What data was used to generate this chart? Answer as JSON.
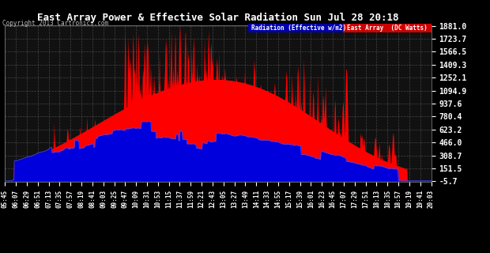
{
  "title": "East Array Power & Effective Solar Radiation Sun Jul 28 20:18",
  "copyright": "Copyright 2013 Cartronics.com",
  "legend_label_radiation": "Radiation (Effective w/m2)",
  "legend_label_east": "East Array  (DC Watts)",
  "yticks": [
    -5.7,
    151.5,
    308.7,
    466.0,
    623.2,
    780.4,
    937.6,
    1094.9,
    1252.1,
    1409.3,
    1566.5,
    1723.7,
    1881.0
  ],
  "ymin": -5.7,
  "ymax": 1881.0,
  "background_color": "#000000",
  "plot_bg_color": "#111111",
  "grid_color": "#666666",
  "title_color": "#ffffff",
  "tick_color": "#ffffff",
  "xtick_labels": [
    "05:45",
    "06:07",
    "06:29",
    "06:51",
    "07:13",
    "07:35",
    "07:57",
    "08:19",
    "08:41",
    "09:03",
    "09:25",
    "09:47",
    "10:09",
    "10:31",
    "10:53",
    "11:15",
    "11:37",
    "11:59",
    "12:21",
    "12:43",
    "13:05",
    "13:27",
    "13:49",
    "14:11",
    "14:33",
    "14:55",
    "15:17",
    "15:39",
    "16:01",
    "16:23",
    "16:45",
    "17:07",
    "17:29",
    "17:51",
    "18:13",
    "18:35",
    "18:57",
    "19:19",
    "19:41",
    "20:03"
  ],
  "fill_color_red": "#ff0000",
  "fill_color_blue": "#0000dd",
  "line_color_blue": "#4444ff",
  "legend_bg_radiation": "#0000aa",
  "legend_bg_east": "#cc0000"
}
